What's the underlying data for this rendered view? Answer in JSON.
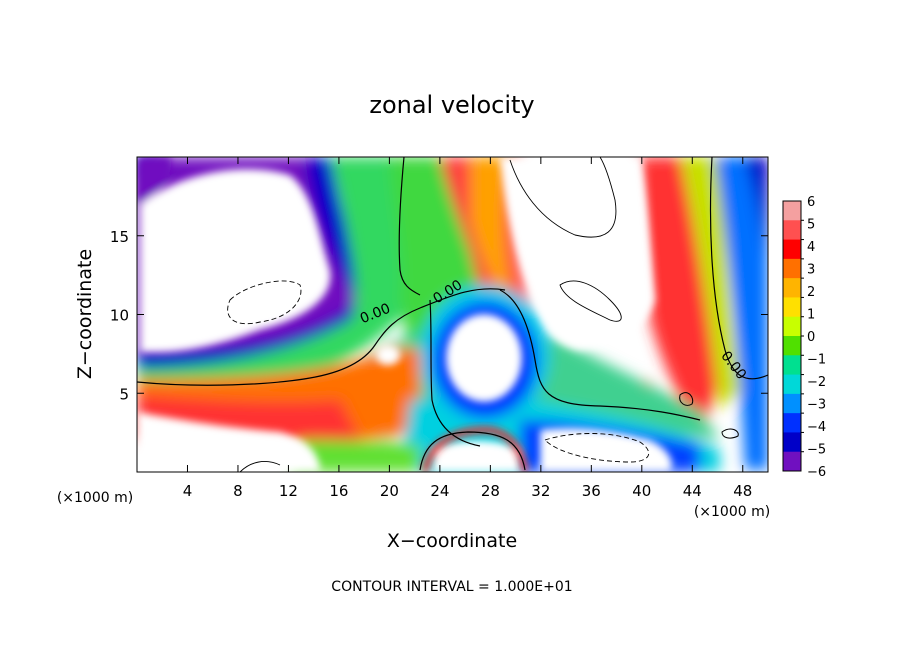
{
  "chart_data": {
    "type": "heatmap",
    "title": "zonal velocity",
    "xlabel": "X−coordinate",
    "ylabel": "Z−coordinate",
    "x_unit_left": "(×1000 m)",
    "x_unit_right": "(×1000 m)",
    "xlim": [
      0,
      50
    ],
    "ylim": [
      0,
      20
    ],
    "xticks": [
      4,
      8,
      12,
      16,
      20,
      24,
      28,
      32,
      36,
      40,
      44,
      48
    ],
    "yticks": [
      5,
      10,
      15
    ],
    "footer": "CONTOUR INTERVAL = 1.000E+01",
    "contour_labels": [
      {
        "text": "0.00",
        "x": 19,
        "z": 9.8,
        "angle": -22
      },
      {
        "text": "0.00",
        "x": 24.8,
        "z": 11.2,
        "angle": -32
      },
      {
        "text": "0.00",
        "x": 47,
        "z": 6.6,
        "angle": 52
      }
    ],
    "colorbar": {
      "labels": [
        "6",
        "5",
        "4",
        "3",
        "2",
        "1",
        "0",
        "−1",
        "−2",
        "−3",
        "−4",
        "−5",
        "−6"
      ],
      "colors": [
        "#f4a0a0",
        "#ff5050",
        "#ff0000",
        "#ff7000",
        "#ffb400",
        "#ffe000",
        "#c8ff00",
        "#50e000",
        "#00e090",
        "#00d8d8",
        "#0090ff",
        "#0030ff",
        "#0000c8",
        "#7010c0"
      ]
    }
  }
}
